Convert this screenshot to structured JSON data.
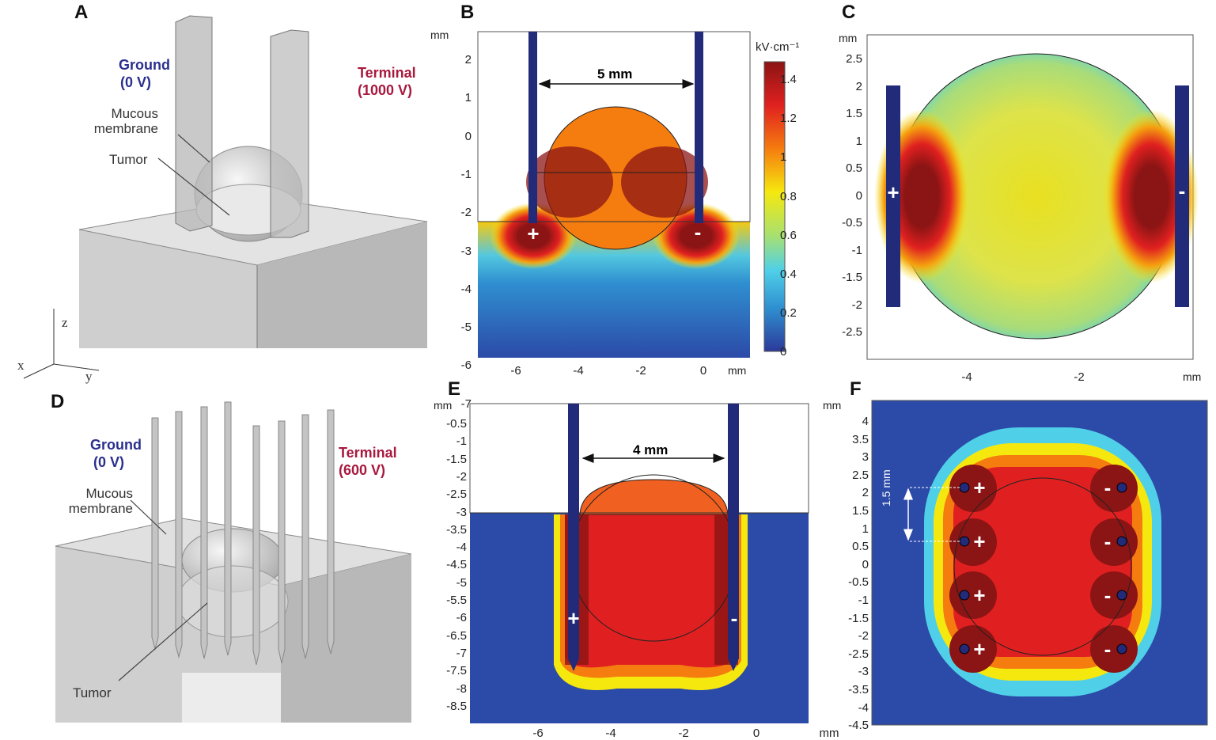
{
  "panels": {
    "a": {
      "label": "A",
      "ground": "Ground",
      "ground_v": "(0 V)",
      "terminal": "Terminal",
      "terminal_v": "(1000 V)",
      "mucous": "Mucous\nmembrane",
      "tumor": "Tumor",
      "axes": {
        "x": "x",
        "y": "y",
        "z": "z"
      }
    },
    "b": {
      "label": "B",
      "unit": "mm",
      "distance": "5 mm",
      "yticks": [
        "2",
        "1",
        "0",
        "-1",
        "-2",
        "-3",
        "-4",
        "-5",
        "-6",
        "-7"
      ],
      "xticks": [
        "-6",
        "-4",
        "-2",
        "0"
      ],
      "plus": "+",
      "minus": "-",
      "colorbar_unit": "kV·cm⁻¹",
      "colorbar_ticks": [
        "1.4",
        "1.2",
        "1",
        "0.8",
        "0.6",
        "0.4",
        "0.2",
        "0"
      ]
    },
    "c": {
      "label": "C",
      "unit": "mm",
      "yticks": [
        "2.5",
        "2",
        "1.5",
        "1",
        "0.5",
        "0",
        "-0.5",
        "-1",
        "-1.5",
        "-2",
        "-2.5"
      ],
      "xticks": [
        "-4",
        "-2"
      ],
      "plus": "+",
      "minus": "-"
    },
    "d": {
      "label": "D",
      "ground": "Ground",
      "ground_v": "(0 V)",
      "terminal": "Terminal",
      "terminal_v": "(600 V)",
      "mucous": "Mucous\nmembrane",
      "tumor": "Tumor"
    },
    "e": {
      "label": "E",
      "unit": "mm",
      "distance": "4 mm",
      "yticks": [
        "-0.5",
        "-1",
        "-1.5",
        "-2",
        "-2.5",
        "-3",
        "-3.5",
        "-4",
        "-4.5",
        "-5",
        "-5.5",
        "-6",
        "-6.5",
        "-7",
        "-7.5",
        "-8",
        "-8.5"
      ],
      "xticks": [
        "-6",
        "-4",
        "-2",
        "0",
        "mm"
      ],
      "plus": "+",
      "minus": "-"
    },
    "f": {
      "label": "F",
      "unit": "mm",
      "spacing": "1.5 mm",
      "yticks": [
        "4",
        "3.5",
        "3",
        "2.5",
        "2",
        "1.5",
        "1",
        "0.5",
        "0",
        "-0.5",
        "-1",
        "-1.5",
        "-2",
        "-2.5",
        "-3",
        "-3.5",
        "-4",
        "-4.5"
      ],
      "plus": "+",
      "minus": "-"
    }
  },
  "colors": {
    "electrode": "#222a7a",
    "cold": "#2c4aa8",
    "hot": "#8b1414"
  }
}
